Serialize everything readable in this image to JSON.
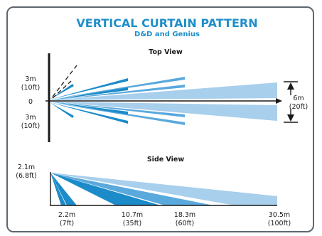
{
  "header": {
    "title": "VERTICAL CURTAIN PATTERN",
    "subtitle": "D&D and Genius"
  },
  "top_view": {
    "label": "Top View",
    "left_labels": {
      "upper_m": "3m",
      "upper_ft": "(10ft)",
      "center": "0",
      "lower_m": "3m",
      "lower_ft": "(10ft)"
    },
    "width_m": "6m",
    "width_ft": "(20ft)"
  },
  "side_view": {
    "label": "Side View",
    "height_m": "2.1m",
    "height_ft": "(6.8ft)",
    "distances": [
      {
        "m": "2.2m",
        "ft": "(7ft)"
      },
      {
        "m": "10.7m",
        "ft": "(35ft)"
      },
      {
        "m": "18.3m",
        "ft": "(60ft)"
      },
      {
        "m": "30.5m",
        "ft": "(100ft)"
      }
    ]
  },
  "colors": {
    "accent": "#1f8fc9",
    "beam_dark": "#1b8bc9",
    "beam_mid": "#5aa9dd",
    "beam_light": "#a8cfec",
    "frame": "#5d6770"
  }
}
